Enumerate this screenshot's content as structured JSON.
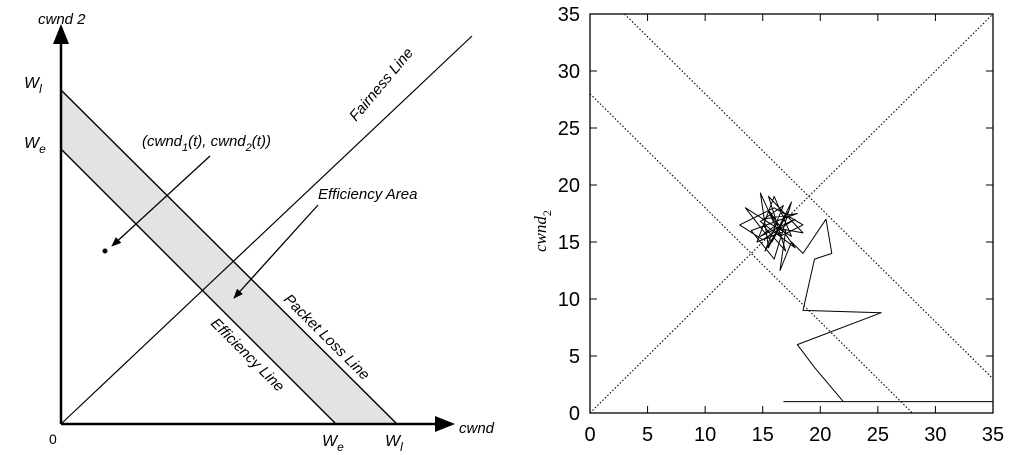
{
  "chart_data": [
    {
      "type": "diagram",
      "y_axis_label": "cwnd 2",
      "x_axis_label": "cwnd",
      "origin_label": "0",
      "y_tick_wl": "W",
      "y_tick_wl_sub": "l",
      "y_tick_we": "W",
      "y_tick_we_sub": "e",
      "x_tick_we": "W",
      "x_tick_we_sub": "e",
      "x_tick_wl": "W",
      "x_tick_wl_sub": "l",
      "fairness_line_label": "Fairness Line",
      "efficiency_area_label": "Efficiency Area",
      "packet_loss_line_label": "Packet Loss Line",
      "efficiency_line_label": "Efficiency Line",
      "point_label_open": "(cwnd",
      "point_label_sub1": "1",
      "point_label_mid": "(t), cwnd",
      "point_label_sub2": "2",
      "point_label_close": "(t))",
      "colors": {
        "efficiency_band": "#e3e3e3",
        "ink": "#000000"
      }
    },
    {
      "type": "line",
      "ylabel": "cwnd",
      "ylabel_sub": "2",
      "xlabel": "",
      "xlim": [
        0,
        35
      ],
      "ylim": [
        0,
        35
      ],
      "x_ticks": [
        0,
        5,
        10,
        15,
        20,
        25,
        30,
        35
      ],
      "y_ticks": [
        0,
        5,
        10,
        15,
        20,
        25,
        30,
        35
      ],
      "grid": false,
      "reference_lines": [
        {
          "style": "dotted",
          "points": [
            [
              0,
              0
            ],
            [
              35,
              35
            ]
          ]
        },
        {
          "style": "dotted",
          "points": [
            [
              0,
              28
            ],
            [
              28,
              0
            ]
          ]
        },
        {
          "style": "dotted",
          "points": [
            [
              3,
              35
            ],
            [
              35,
              3
            ]
          ]
        }
      ],
      "trajectory": [
        [
          16.8,
          1
        ],
        [
          35,
          1
        ],
        [
          22,
          1
        ],
        [
          19.5,
          4
        ],
        [
          18,
          6
        ],
        [
          25.3,
          8.8
        ],
        [
          18.5,
          9
        ],
        [
          19.5,
          13.5
        ],
        [
          21,
          14
        ],
        [
          20.5,
          17
        ],
        [
          18.5,
          14
        ],
        [
          17.5,
          15
        ],
        [
          16.5,
          12.5
        ],
        [
          17,
          16
        ],
        [
          14.5,
          15
        ],
        [
          16,
          19
        ],
        [
          17.5,
          15.5
        ],
        [
          15,
          17
        ],
        [
          18,
          17.5
        ],
        [
          14,
          16
        ],
        [
          16,
          13.5
        ],
        [
          17.5,
          18.5
        ],
        [
          15.5,
          14.5
        ],
        [
          14.8,
          19.3
        ],
        [
          16.5,
          15.5
        ],
        [
          18.5,
          16.5
        ],
        [
          16,
          18
        ],
        [
          13,
          16.5
        ],
        [
          15,
          15.2
        ],
        [
          17.8,
          17
        ],
        [
          14.8,
          15.5
        ],
        [
          16.2,
          16.5
        ],
        [
          15.5,
          17.8
        ],
        [
          17.8,
          14.5
        ],
        [
          14.8,
          16.8
        ],
        [
          16.8,
          18.2
        ],
        [
          15.2,
          14.2
        ],
        [
          17.3,
          17.8
        ],
        [
          15.8,
          15
        ],
        [
          13.5,
          18
        ],
        [
          16.3,
          16.2
        ],
        [
          18.5,
          15.8
        ],
        [
          15.5,
          19
        ],
        [
          17,
          14.2
        ],
        [
          15,
          16.5
        ]
      ]
    }
  ]
}
